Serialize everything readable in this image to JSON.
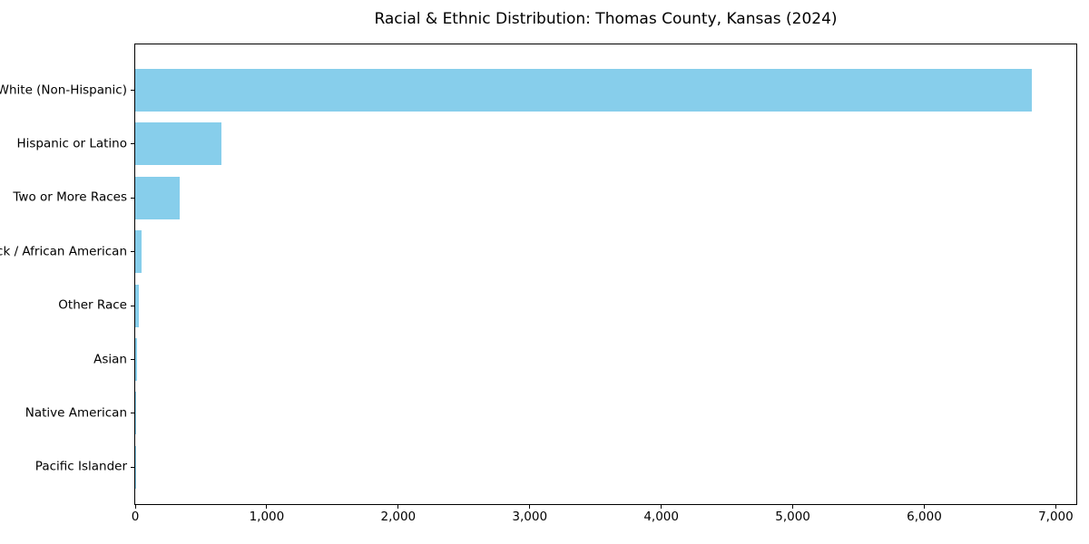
{
  "chart_data": {
    "type": "bar",
    "orientation": "horizontal",
    "title": "Racial & Ethnic Distribution: Thomas County, Kansas (2024)",
    "categories": [
      "White (Non-Hispanic)",
      "Hispanic or Latino",
      "Two or More Races",
      "Black / African American",
      "Other Race",
      "Asian",
      "Native American",
      "Pacific Islander"
    ],
    "values": [
      6815,
      655,
      335,
      45,
      25,
      15,
      8,
      2
    ],
    "xlabel": "",
    "ylabel": "",
    "xlim": [
      0,
      7156
    ],
    "x_ticks": [
      0,
      1000,
      2000,
      3000,
      4000,
      5000,
      6000,
      7000
    ],
    "x_tick_labels": [
      "0",
      "1,000",
      "2,000",
      "3,000",
      "4,000",
      "5,000",
      "6,000",
      "7,000"
    ],
    "bar_color": "#87CEEB",
    "text_color": "#000000",
    "grid": false,
    "legend": null
  }
}
